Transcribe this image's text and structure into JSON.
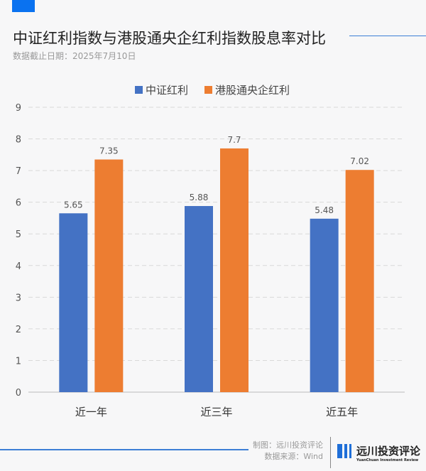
{
  "header": {
    "title": "中证红利指数与港股通央企红利指数股息率对比",
    "subtitle": "数据截止日期：2025年7月10日"
  },
  "chart_data": {
    "type": "bar",
    "categories": [
      "近一年",
      "近三年",
      "近五年"
    ],
    "series": [
      {
        "name": "中证红利",
        "values": [
          5.65,
          5.88,
          5.48
        ],
        "color": "#4472c4"
      },
      {
        "name": "港股通央企红利",
        "values": [
          7.35,
          7.7,
          7.02
        ],
        "color": "#ed7d31"
      }
    ],
    "ylim": [
      0,
      9
    ],
    "yticks": [
      "0",
      "1",
      "2",
      "3",
      "4",
      "5",
      "6",
      "7",
      "8",
      "9"
    ],
    "data_labels": [
      [
        "5.65",
        "5.88",
        "5.48"
      ],
      [
        "7.35",
        "7.7",
        "7.02"
      ]
    ],
    "grid": true,
    "legend": "top-center"
  },
  "footer": {
    "credit": "制图：远川投资评论",
    "source": "数据来源：Wind",
    "logo_text": "远川投资评论",
    "logo_sub": "YuanChuan Investment Review"
  }
}
